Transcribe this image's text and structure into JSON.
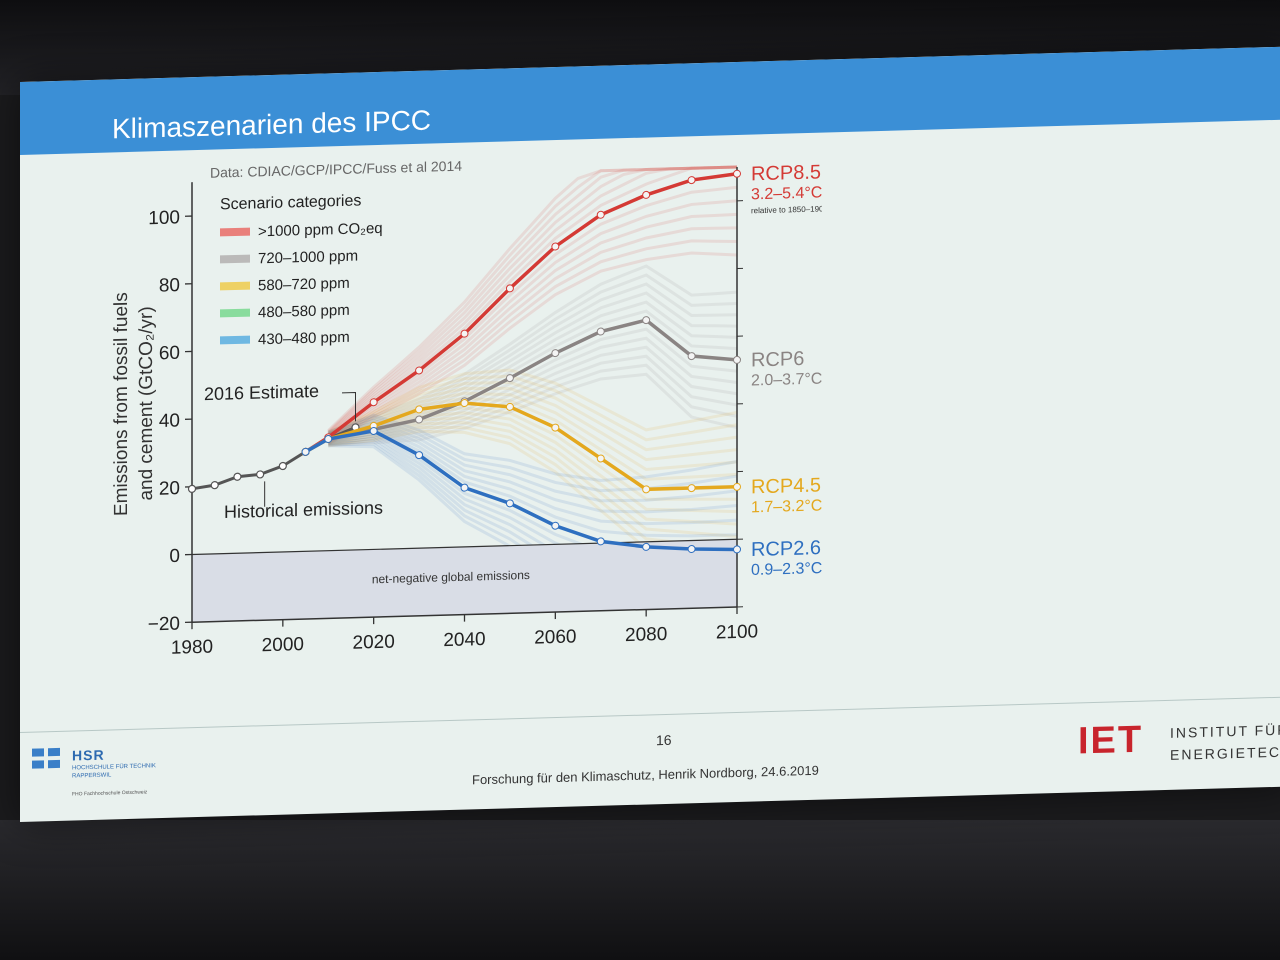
{
  "slide": {
    "title": "Klimaszenarien des IPCC",
    "page_number": "16",
    "footer": "Forschung für den Klimaschutz, Henrik Nordborg, 24.6.2019",
    "logo_left": {
      "name": "HSR",
      "line1": "HOCHSCHULE FÜR TECHNIK",
      "line2": "RAPPERSWIL",
      "line3": "FHO Fachhochschule Ostschweiz"
    },
    "logo_right": {
      "name": "IET",
      "line1": "INSTITUT FÜR",
      "line2": "ENERGIETECH"
    }
  },
  "chart_data": {
    "type": "line",
    "source": "Data: CDIAC/GCP/IPCC/Fuss et al 2014",
    "ylabel": "Emissions from fossil fuels and cement (GtCO₂/yr)",
    "xlim": [
      1980,
      2100
    ],
    "ylim": [
      -20,
      110
    ],
    "xticks": [
      "1980",
      "2000",
      "2020",
      "2040",
      "2060",
      "2080",
      "2100"
    ],
    "yticks": [
      "−20",
      "0",
      "20",
      "40",
      "60",
      "80",
      "100"
    ],
    "legend_title": "Scenario categories",
    "legend": [
      {
        "label": ">1000 ppm CO₂eq",
        "color": "#e8504a"
      },
      {
        "label": "720–1000 ppm",
        "color": "#a7a3a2"
      },
      {
        "label": "580–720 ppm",
        "color": "#f0c32a"
      },
      {
        "label": "480–580 ppm",
        "color": "#5fd37b"
      },
      {
        "label": "430–480 ppm",
        "color": "#3aa0dd"
      }
    ],
    "annotations": {
      "estimate": "2016 Estimate",
      "historical": "Historical emissions",
      "negative": "net-negative global emissions",
      "note": "relative to 1850–1900"
    },
    "historical": {
      "x": [
        1980,
        1985,
        1990,
        1995,
        2000,
        2005,
        2010,
        2016
      ],
      "y": [
        19.4,
        20.3,
        22.6,
        23.1,
        25.4,
        29.4,
        33.1,
        36.2
      ]
    },
    "series": [
      {
        "name": "RCP8.5",
        "range": "3.2–5.4°C",
        "color": "#d43a35",
        "x": [
          2005,
          2010,
          2020,
          2030,
          2040,
          2050,
          2060,
          2070,
          2080,
          2090,
          2100
        ],
        "y": [
          29.4,
          33.5,
          43.5,
          52.5,
          63.0,
          76.0,
          88.0,
          97.0,
          102.5,
          106.5,
          108.0
        ]
      },
      {
        "name": "RCP6",
        "range": "2.0–3.7°C",
        "color": "#8a8483",
        "x": [
          2005,
          2010,
          2020,
          2030,
          2040,
          2050,
          2060,
          2070,
          2080,
          2090,
          2100
        ],
        "y": [
          29.4,
          33.0,
          35.5,
          38.0,
          43.0,
          49.5,
          56.5,
          62.5,
          65.5,
          54.5,
          53.0
        ]
      },
      {
        "name": "RCP4.5",
        "range": "1.7–3.2°C",
        "color": "#e4a81e",
        "x": [
          2005,
          2010,
          2020,
          2030,
          2040,
          2050,
          2060,
          2070,
          2080,
          2090,
          2100
        ],
        "y": [
          29.4,
          33.0,
          36.5,
          41.0,
          42.5,
          41.0,
          34.5,
          25.0,
          15.5,
          15.5,
          15.5
        ]
      },
      {
        "name": "RCP2.6",
        "range": "0.9–2.3°C",
        "color": "#2e6fc0",
        "x": [
          2005,
          2010,
          2020,
          2030,
          2040,
          2050,
          2060,
          2070,
          2080,
          2090,
          2100
        ],
        "y": [
          29.4,
          33.0,
          35.0,
          27.5,
          17.5,
          12.5,
          5.5,
          0.5,
          -1.5,
          -2.5,
          -3.0
        ]
      }
    ]
  }
}
